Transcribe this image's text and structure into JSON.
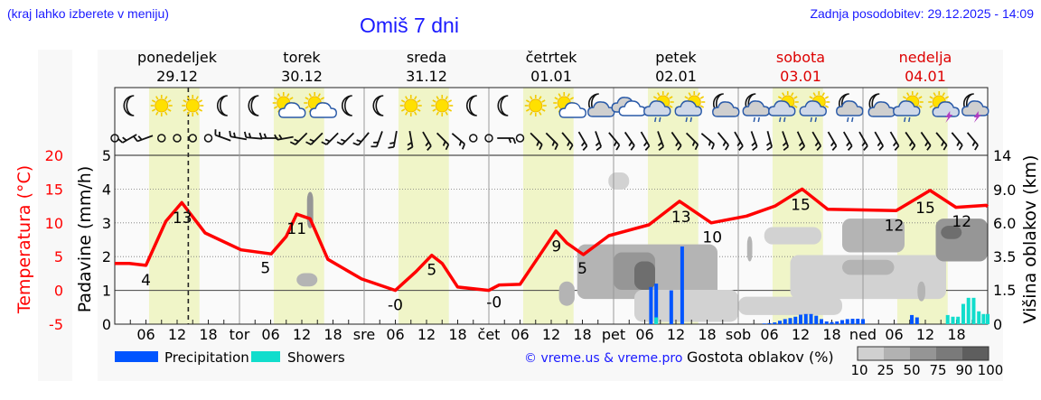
{
  "header": {
    "hint": "(kraj lahko izberete v meniju)",
    "title": "Omiš 7 dni",
    "updated": "Zadnja posodobitev: 29.12.2025 - 14:09"
  },
  "colors": {
    "temperature": "#ff0000",
    "precipitation": "#0055ff",
    "showers": "#11ddcc",
    "daylight": "#f0f5c8",
    "weekend": "#dd0000",
    "link": "#1a1aff"
  },
  "chart_data": {
    "type": "line",
    "title": "Omiš 7 dni",
    "current_time_hour": 14.15,
    "days": [
      {
        "name": "ponedeljek",
        "date": "29.12",
        "abbr": "",
        "weekend": false
      },
      {
        "name": "torek",
        "date": "30.12",
        "abbr": "tor",
        "weekend": false
      },
      {
        "name": "sreda",
        "date": "31.12",
        "abbr": "sre",
        "weekend": false
      },
      {
        "name": "četrtek",
        "date": "01.01",
        "abbr": "čet",
        "weekend": false
      },
      {
        "name": "petek",
        "date": "02.01",
        "abbr": "pet",
        "weekend": false
      },
      {
        "name": "sobota",
        "date": "03.01",
        "abbr": "sob",
        "weekend": true
      },
      {
        "name": "nedelja",
        "date": "04.01",
        "abbr": "ned",
        "weekend": true
      }
    ],
    "hour_ticks": [
      "06",
      "12",
      "18"
    ],
    "daylight_hours": [
      6.6,
      16.3
    ],
    "axes": {
      "temperature": {
        "label": "Temperatura (°C)",
        "range": [
          -5,
          20
        ],
        "ticks": [
          "20",
          "15",
          "10",
          "5",
          "0",
          "-5"
        ]
      },
      "precipitation": {
        "label": "Padavine (mm/h)",
        "range": [
          0,
          5
        ],
        "ticks": [
          "0",
          "1",
          "2",
          "3",
          "4",
          "5"
        ]
      },
      "cloud_height": {
        "label": "Višina oblakov (km)",
        "ticks": [
          "0",
          "1.5",
          "3.5",
          "6.0",
          "9.0",
          "14"
        ]
      }
    },
    "temperature": [
      [
        0,
        4.0
      ],
      [
        2.8,
        4.0
      ],
      [
        6,
        3.7
      ],
      [
        9.8,
        10.2
      ],
      [
        12.9,
        13.0
      ],
      [
        17.4,
        8.5
      ],
      [
        24.3,
        6.0
      ],
      [
        30.1,
        5.4
      ],
      [
        33,
        8
      ],
      [
        35,
        11.3
      ],
      [
        37.6,
        10.6
      ],
      [
        41,
        4.6
      ],
      [
        47.5,
        1.7
      ],
      [
        54,
        0.0
      ],
      [
        58,
        2.8
      ],
      [
        61,
        5.2
      ],
      [
        63,
        4
      ],
      [
        66,
        0.5
      ],
      [
        72,
        0.0
      ],
      [
        74,
        0.8
      ],
      [
        78,
        0.9
      ],
      [
        82.3,
        5.8
      ],
      [
        84.9,
        8.8
      ],
      [
        87,
        7
      ],
      [
        90.2,
        5.3
      ],
      [
        95.1,
        8.1
      ],
      [
        102.8,
        9.7
      ],
      [
        108.7,
        13.2
      ],
      [
        114.8,
        10.0
      ],
      [
        121.6,
        11.0
      ],
      [
        127.1,
        12.5
      ],
      [
        132.3,
        15.0
      ],
      [
        137.2,
        12.0
      ],
      [
        150.4,
        11.8
      ],
      [
        156.9,
        14.8
      ],
      [
        161.9,
        12.3
      ],
      [
        167.7,
        12.6
      ],
      [
        168,
        12.4
      ]
    ],
    "temperature_labels": [
      {
        "hour": 6,
        "text": "4"
      },
      {
        "hour": 13,
        "text": "13"
      },
      {
        "hour": 29,
        "text": "5"
      },
      {
        "hour": 35,
        "text": "11"
      },
      {
        "hour": 54,
        "text": "-0"
      },
      {
        "hour": 61,
        "text": "5"
      },
      {
        "hour": 73,
        "text": "-0"
      },
      {
        "hour": 85,
        "text": "9"
      },
      {
        "hour": 90,
        "text": "5"
      },
      {
        "hour": 109,
        "text": "13"
      },
      {
        "hour": 115,
        "text": "10"
      },
      {
        "hour": 132,
        "text": "15"
      },
      {
        "hour": 150,
        "text": "12"
      },
      {
        "hour": 156,
        "text": "15"
      },
      {
        "hour": 163,
        "text": "12"
      }
    ],
    "precipitation": [
      [
        103.2,
        1.1
      ],
      [
        104.2,
        1.2
      ],
      [
        107.1,
        1.0
      ],
      [
        109.2,
        2.3
      ],
      [
        125,
        0.02
      ],
      [
        126,
        0.03
      ],
      [
        127,
        0.05
      ],
      [
        128,
        0.1
      ],
      [
        129,
        0.15
      ],
      [
        130,
        0.18
      ],
      [
        131,
        0.22
      ],
      [
        132,
        0.28
      ],
      [
        133,
        0.3
      ],
      [
        134,
        0.3
      ],
      [
        135,
        0.25
      ],
      [
        136,
        0.15
      ],
      [
        137,
        0.08
      ],
      [
        138,
        0.06
      ],
      [
        139,
        0.08
      ],
      [
        140,
        0.12
      ],
      [
        141,
        0.15
      ],
      [
        142,
        0.16
      ],
      [
        143,
        0.16
      ],
      [
        144,
        0.15
      ],
      [
        153.4,
        0.27
      ],
      [
        154.4,
        0.2
      ]
    ],
    "showers": [
      [
        104.2,
        0.2
      ],
      [
        160.3,
        0.27
      ],
      [
        161.3,
        0.22
      ],
      [
        162.3,
        0.22
      ],
      [
        163.3,
        0.6
      ],
      [
        164.3,
        0.78
      ],
      [
        165.3,
        0.78
      ],
      [
        166.3,
        0.38
      ],
      [
        167.2,
        0.3
      ],
      [
        168,
        0.3
      ]
    ],
    "cloud_density": [
      {
        "h0": 35,
        "h1": 39,
        "km0": 1.7,
        "km1": 2.5,
        "density": 50
      },
      {
        "h0": 37,
        "h1": 38.2,
        "km0": 5.6,
        "km1": 8.8,
        "density": 75
      },
      {
        "h0": 85.5,
        "h1": 88.5,
        "km0": 0.8,
        "km1": 2.0,
        "density": 50
      },
      {
        "h0": 89,
        "h1": 116,
        "km0": 1.1,
        "km1": 4.4,
        "density": 50
      },
      {
        "h0": 96,
        "h1": 104,
        "km0": 1.5,
        "km1": 3.8,
        "density": 75
      },
      {
        "h0": 100,
        "h1": 104,
        "km0": 1.5,
        "km1": 3.2,
        "density": 90
      },
      {
        "h0": 95,
        "h1": 99,
        "km0": 9.0,
        "km1": 11.5,
        "density": 25
      },
      {
        "h0": 100,
        "h1": 120,
        "km0": 0.1,
        "km1": 1.5,
        "density": 25
      },
      {
        "h0": 121.7,
        "h1": 122.7,
        "km0": 3.2,
        "km1": 5.0,
        "density": 50
      },
      {
        "h0": 125,
        "h1": 136,
        "km0": 4.4,
        "km1": 5.7,
        "density": 25
      },
      {
        "h0": 130,
        "h1": 160,
        "km0": 1.1,
        "km1": 3.6,
        "density": 25
      },
      {
        "h0": 140,
        "h1": 150,
        "km0": 2.4,
        "km1": 3.3,
        "density": 50
      },
      {
        "h0": 140,
        "h1": 152,
        "km0": 3.8,
        "km1": 6.4,
        "density": 50
      },
      {
        "h0": 158,
        "h1": 168,
        "km0": 3.2,
        "km1": 6.4,
        "density": 75
      },
      {
        "h0": 159,
        "h1": 163,
        "km0": 4.8,
        "km1": 5.8,
        "density": 90
      },
      {
        "h0": 154.5,
        "h1": 156,
        "km0": 1.0,
        "km1": 2.0,
        "density": 50
      },
      {
        "h0": 120,
        "h1": 140,
        "km0": 0.4,
        "km1": 1.2,
        "density": 25
      }
    ],
    "weather_symbols": [
      "moon",
      "sun",
      "sun",
      "moon",
      "moon",
      "sun-cloud",
      "sun-cloud",
      "moon",
      "moon",
      "sun",
      "sun",
      "moon",
      "moon",
      "sun",
      "sun-cloud",
      "moon-cloud",
      "cloud",
      "sun-cloud-rain",
      "sun-cloud-rain",
      "moon-cloud",
      "moon-cloud-rain",
      "sun-cloud-rain",
      "sun-cloud-rain",
      "moon-cloud-rain",
      "moon-cloud",
      "sun-cloud-rain",
      "sun-cloud-thunder",
      "moon-cloud-thunder"
    ],
    "wind_directions_deg": [
      null,
      240,
      250,
      null,
      null,
      null,
      null,
      290,
      280,
      275,
      270,
      260,
      225,
      225,
      225,
      225,
      220,
      200,
      190,
      170,
      150,
      135,
      130,
      null,
      null,
      90,
      null,
      135,
      135,
      140,
      150,
      160,
      140,
      145,
      150,
      160,
      145,
      135,
      130,
      140,
      150,
      160,
      165,
      160,
      155,
      150,
      150,
      150,
      150,
      150,
      150,
      145,
      145,
      140,
      140,
      140
    ],
    "legend": {
      "precipitation": "Precipitation",
      "showers": "Showers"
    },
    "credit": "© vreme.us & vreme.pro",
    "cloud_scale": {
      "label": "Gostota oblakov (%)",
      "ticks": [
        "10",
        "25",
        "50",
        "75",
        "90",
        "100"
      ]
    }
  }
}
